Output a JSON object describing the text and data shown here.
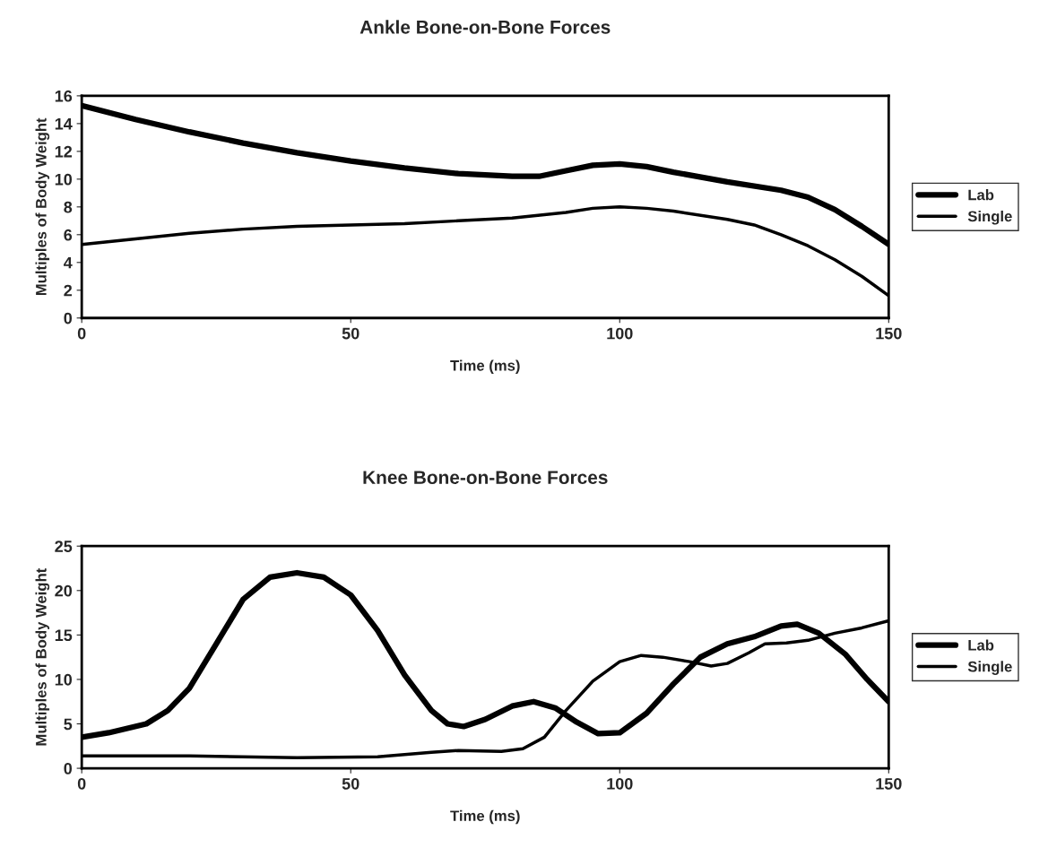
{
  "chart_data": [
    {
      "type": "line",
      "title": "Ankle Bone-on-Bone Forces",
      "xlabel": "Time (ms)",
      "ylabel": "Multiples of Body Weight",
      "xlim": [
        0,
        150
      ],
      "xticks": [
        0,
        50,
        100,
        150
      ],
      "ylim": [
        0,
        16
      ],
      "yticks": [
        0,
        2,
        4,
        6,
        8,
        10,
        12,
        14,
        16
      ],
      "grid": false,
      "legend": "right",
      "series": [
        {
          "name": "Lab",
          "color": "#000000",
          "x": [
            0,
            10,
            20,
            30,
            40,
            50,
            60,
            70,
            80,
            85,
            90,
            95,
            100,
            105,
            110,
            120,
            130,
            135,
            140,
            145,
            150
          ],
          "values": [
            15.3,
            14.3,
            13.4,
            12.6,
            11.9,
            11.3,
            10.8,
            10.4,
            10.2,
            10.2,
            10.6,
            11.0,
            11.1,
            10.9,
            10.5,
            9.8,
            9.2,
            8.7,
            7.8,
            6.6,
            5.3
          ]
        },
        {
          "name": "Single",
          "color": "#000000",
          "x": [
            0,
            10,
            20,
            30,
            40,
            50,
            60,
            70,
            80,
            90,
            95,
            100,
            105,
            110,
            120,
            125,
            130,
            135,
            140,
            145,
            150
          ],
          "values": [
            5.3,
            5.7,
            6.1,
            6.4,
            6.6,
            6.7,
            6.8,
            7.0,
            7.2,
            7.6,
            7.9,
            8.0,
            7.9,
            7.7,
            7.1,
            6.7,
            6.0,
            5.2,
            4.2,
            3.0,
            1.6
          ]
        }
      ]
    },
    {
      "type": "line",
      "title": "Knee Bone-on-Bone Forces",
      "xlabel": "Time (ms)",
      "ylabel": "Multiples of Body Weight",
      "xlim": [
        0,
        150
      ],
      "xticks": [
        0,
        50,
        100,
        150
      ],
      "ylim": [
        0,
        25
      ],
      "yticks": [
        0,
        5,
        10,
        15,
        20,
        25
      ],
      "grid": false,
      "legend": "right",
      "series": [
        {
          "name": "Lab",
          "color": "#000000",
          "x": [
            0,
            5,
            12,
            16,
            20,
            25,
            30,
            35,
            40,
            45,
            50,
            55,
            60,
            65,
            68,
            71,
            75,
            80,
            84,
            88,
            92,
            96,
            100,
            105,
            110,
            115,
            120,
            125,
            130,
            133,
            137,
            142,
            146,
            150
          ],
          "values": [
            3.5,
            4.0,
            5.0,
            6.5,
            9.0,
            14.0,
            19.0,
            21.5,
            22.0,
            21.5,
            19.5,
            15.5,
            10.5,
            6.5,
            5.0,
            4.7,
            5.5,
            7.0,
            7.5,
            6.8,
            5.2,
            3.9,
            4.0,
            6.2,
            9.5,
            12.5,
            14.0,
            14.8,
            16.0,
            16.2,
            15.2,
            12.8,
            10.0,
            7.5
          ]
        },
        {
          "name": "Single",
          "color": "#000000",
          "x": [
            0,
            20,
            40,
            55,
            65,
            70,
            78,
            82,
            86,
            90,
            95,
            100,
            104,
            108,
            113,
            117,
            120,
            124,
            127,
            131,
            135,
            140,
            145,
            150
          ],
          "values": [
            1.4,
            1.4,
            1.2,
            1.3,
            1.8,
            2.0,
            1.9,
            2.2,
            3.5,
            6.5,
            9.8,
            12.0,
            12.7,
            12.5,
            12.0,
            11.5,
            11.8,
            13.0,
            14.0,
            14.1,
            14.4,
            15.2,
            15.8,
            16.6
          ]
        }
      ]
    }
  ]
}
